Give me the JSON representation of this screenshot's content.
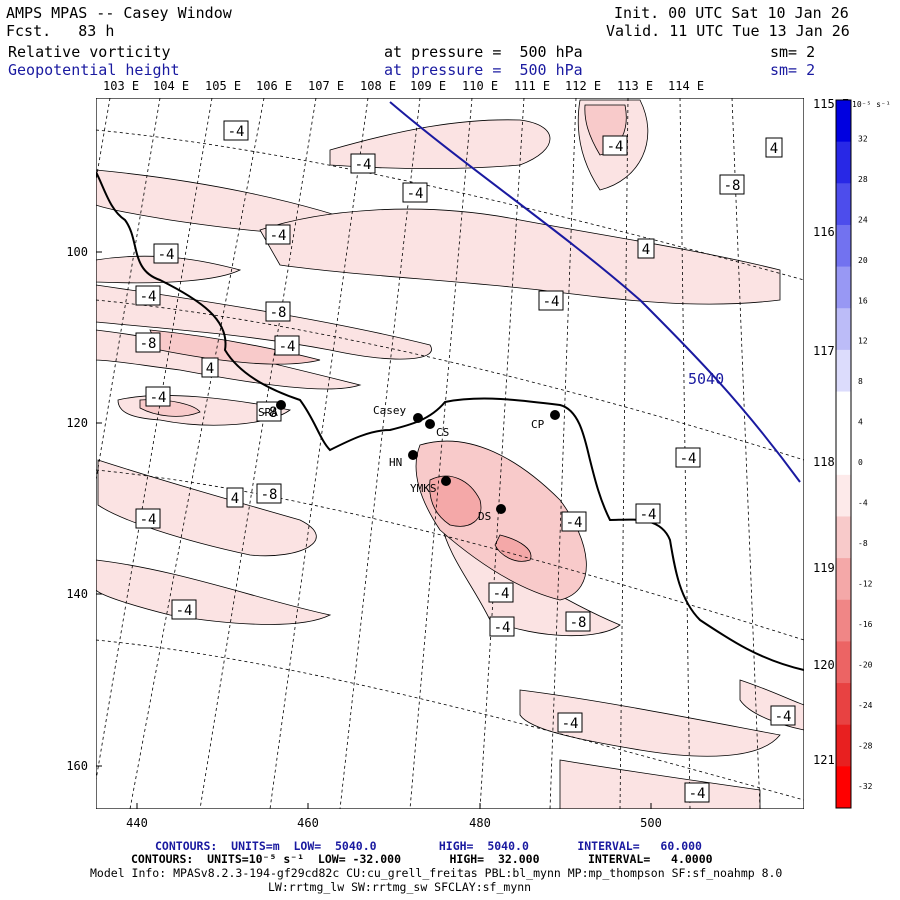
{
  "header": {
    "title": "AMPS MPAS -- Casey Window",
    "fcst": "Fcst.   83 h",
    "init": "Init. 00 UTC Sat 10 Jan 26",
    "valid": "Valid. 11 UTC Tue 13 Jan 26",
    "field1": "Relative vorticity",
    "field1_level": "at pressure =  500 hPa",
    "field1_sm": "sm= 2",
    "field2": "Geopotential height",
    "field2_level": "at pressure =  500 hPa",
    "field2_sm": "sm= 2"
  },
  "map": {
    "top_longitudes": [
      "103 E",
      "104 E",
      "105 E",
      "106 E",
      "107 E",
      "108 E",
      "109 E",
      "110 E",
      "111 E",
      "112 E",
      "113 E",
      "114 E"
    ],
    "right_longitudes": [
      "115 E",
      "116 E",
      "117 E",
      "118 E",
      "119 E",
      "120 E",
      "121 E"
    ],
    "y_ticks": [
      "100",
      "120",
      "140",
      "160"
    ],
    "x_ticks": [
      "440",
      "460",
      "480",
      "500"
    ],
    "height_label": "5040",
    "stations": [
      {
        "name": "Casey"
      },
      {
        "name": "CS"
      },
      {
        "name": "CP"
      },
      {
        "name": "SRA"
      },
      {
        "name": "HN"
      },
      {
        "name": "YMKS"
      },
      {
        "name": "DS"
      }
    ],
    "vort_labels": [
      "-4",
      "-4",
      "-4",
      "-8",
      "4",
      "-4",
      "-4",
      "-4",
      "4",
      "-4",
      "-4",
      "-8",
      "-4",
      "-8",
      "4",
      "-4",
      "-8",
      "-4",
      "-4",
      "-4",
      "4",
      "-8",
      "-4",
      "-4",
      "-8",
      "-4",
      "-4",
      "-4",
      "-4",
      "-4"
    ]
  },
  "colorbar": {
    "units": "10⁻⁵ s⁻¹",
    "labels": [
      "32",
      "28",
      "24",
      "20",
      "16",
      "12",
      "8",
      "4",
      "0",
      "-4",
      "-8",
      "-12",
      "-16",
      "-20",
      "-24",
      "-28",
      "-32"
    ],
    "colors": [
      "#0000e0",
      "#2828e6",
      "#4d4dec",
      "#7272f0",
      "#9898f4",
      "#bcbcf8",
      "#dcdcfc",
      "#ffffff",
      "#ffffff",
      "#fdeaea",
      "#f8caca",
      "#f4a8a8",
      "#f08686",
      "#ec6464",
      "#e84242",
      "#e82020",
      "#ff0000"
    ]
  },
  "footer": {
    "line1": "CONTOURS:  UNITS=m  LOW=  5040.0         HIGH=  5040.0       INTERVAL=   60.000",
    "line2": "CONTOURS:  UNITS=10⁻⁵ s⁻¹  LOW= -32.000       HIGH=  32.000       INTERVAL=   4.0000",
    "line3": "Model Info: MPASv8.2.3-194-gf29cd82c CU:cu_grell_freitas PBL:bl_mynn MP:mp_thompson SF:sf_noahmp 8.0",
    "line4": "LW:rrtmg_lw SW:rrtmg_sw SFCLAY:sf_mynn"
  }
}
